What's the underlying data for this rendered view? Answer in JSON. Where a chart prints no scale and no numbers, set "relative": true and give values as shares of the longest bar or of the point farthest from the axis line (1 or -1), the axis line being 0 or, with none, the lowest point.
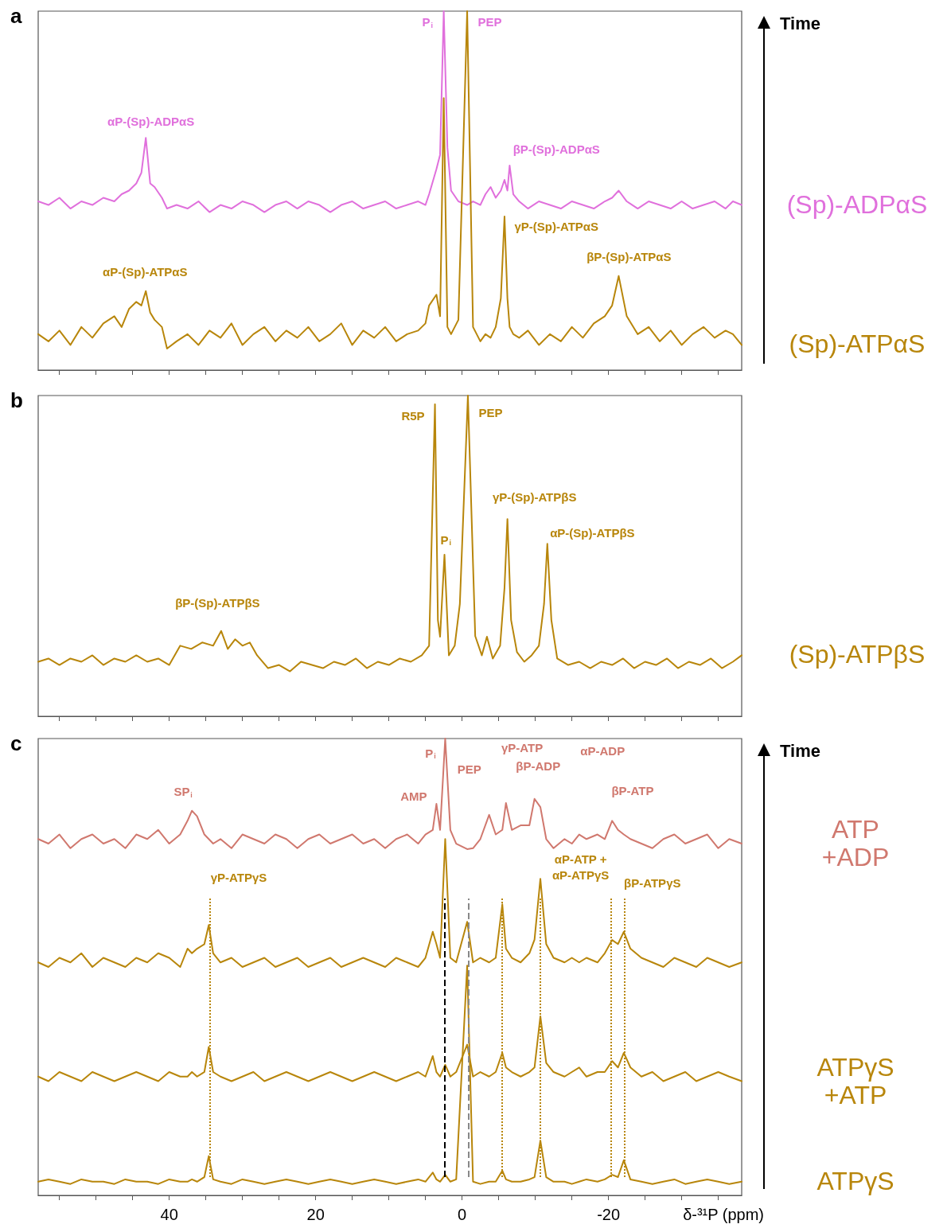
{
  "chart_data": [
    {
      "type": "line",
      "title": "a",
      "relative": true,
      "xlim": [
        57.9,
        -38.2
      ],
      "xticks": [
        {
          "value": 55,
          "label": null
        },
        {
          "value": 50,
          "label": null
        },
        {
          "value": 45,
          "label": null
        },
        40,
        {
          "value": 35,
          "label": null
        },
        {
          "value": 30,
          "label": null
        },
        {
          "value": 25,
          "label": null
        },
        20,
        {
          "value": 15,
          "label": null
        },
        {
          "value": 10,
          "label": null
        },
        {
          "value": 5,
          "label": null
        },
        0,
        {
          "value": -5,
          "label": null
        },
        {
          "value": -10,
          "label": null
        },
        {
          "value": -15,
          "label": null
        },
        -20,
        {
          "value": -25,
          "label": null
        },
        {
          "value": -30,
          "label": null
        },
        {
          "value": -35,
          "label": null
        }
      ],
      "tick_labels": false,
      "x": [
        57.9,
        56.5,
        55,
        53.5,
        52,
        50.5,
        49,
        47.5,
        46.5,
        45.5,
        44.5,
        43.8,
        43.2,
        42.6,
        42,
        41,
        40.3,
        39,
        37.5,
        36,
        34.5,
        33,
        31.5,
        30,
        28.5,
        27,
        25.5,
        24,
        22.5,
        21,
        19.5,
        18,
        16.5,
        15,
        13.5,
        12,
        10.5,
        9,
        7.5,
        6,
        5,
        4.5,
        3.5,
        3,
        2.5,
        2,
        1.5,
        0.5,
        -0.7,
        -1.5,
        -2.5,
        -3.2,
        -3.9,
        -4.6,
        -5.3,
        -5.8,
        -6.2,
        -6.5,
        -7,
        -7.8,
        -9,
        -10.5,
        -12,
        -13.5,
        -15,
        -16.5,
        -18,
        -19.5,
        -20.5,
        -21.4,
        -22.5,
        -24,
        -25.5,
        -27,
        -28.5,
        -30,
        -31.5,
        -33,
        -34.5,
        -36,
        -37,
        -38.2
      ],
      "series": [
        {
          "name": "(Sp)-ADPαS",
          "color": "#e070dc",
          "values": [
            0.47,
            0.46,
            0.48,
            0.45,
            0.47,
            0.46,
            0.48,
            0.47,
            0.49,
            0.5,
            0.52,
            0.55,
            0.647,
            0.52,
            0.51,
            0.48,
            0.45,
            0.46,
            0.45,
            0.47,
            0.44,
            0.46,
            0.45,
            0.47,
            0.46,
            0.44,
            0.46,
            0.47,
            0.45,
            0.47,
            0.46,
            0.44,
            0.46,
            0.47,
            0.45,
            0.46,
            0.47,
            0.45,
            0.46,
            0.47,
            0.46,
            0.49,
            0.56,
            0.6,
            1,
            0.62,
            0.5,
            0.47,
            0.46,
            0.47,
            0.46,
            0.49,
            0.51,
            0.48,
            0.5,
            0.53,
            0.5,
            0.57,
            0.49,
            0.47,
            0.45,
            0.47,
            0.46,
            0.45,
            0.47,
            0.46,
            0.45,
            0.47,
            0.48,
            0.5,
            0.47,
            0.45,
            0.47,
            0.46,
            0.45,
            0.47,
            0.45,
            0.46,
            0.47,
            0.45,
            0.47,
            0.46
          ]
        },
        {
          "name": "(Sp)-ATPαS",
          "color": "#b8860b",
          "values": [
            0.1,
            0.08,
            0.11,
            0.07,
            0.12,
            0.09,
            0.13,
            0.15,
            0.12,
            0.17,
            0.19,
            0.18,
            0.22,
            0.16,
            0.14,
            0.12,
            0.06,
            0.08,
            0.1,
            0.07,
            0.11,
            0.09,
            0.13,
            0.07,
            0.1,
            0.12,
            0.08,
            0.11,
            0.09,
            0.12,
            0.08,
            0.1,
            0.13,
            0.07,
            0.11,
            0.09,
            0.12,
            0.08,
            0.1,
            0.11,
            0.13,
            0.18,
            0.21,
            0.15,
            0.758,
            0.12,
            0.1,
            0.14,
            1,
            0.12,
            0.08,
            0.1,
            0.09,
            0.12,
            0.2,
            0.428,
            0.2,
            0.12,
            0.1,
            0.09,
            0.11,
            0.07,
            0.1,
            0.08,
            0.12,
            0.09,
            0.13,
            0.15,
            0.18,
            0.262,
            0.15,
            0.1,
            0.12,
            0.08,
            0.11,
            0.07,
            0.1,
            0.12,
            0.09,
            0.11,
            0.1,
            0.07
          ]
        }
      ],
      "annotations": [
        "Time",
        "P$_{i}$",
        "PEP",
        "αP-(Sp)-ADPαS",
        "βP-(Sp)-ADPαS",
        "γP-(Sp)-ATPαS",
        "βP-(Sp)-ATPαS",
        "αP-(Sp)-ATPαS"
      ]
    },
    {
      "type": "line",
      "title": "b",
      "relative": true,
      "xlim": [
        57.9,
        -38.2
      ],
      "xticks": [
        {
          "value": 55,
          "label": null
        },
        {
          "value": 50,
          "label": null
        },
        {
          "value": 45,
          "label": null
        },
        40,
        {
          "value": 35,
          "label": null
        },
        {
          "value": 30,
          "label": null
        },
        {
          "value": 25,
          "label": null
        },
        20,
        {
          "value": 15,
          "label": null
        },
        {
          "value": 10,
          "label": null
        },
        {
          "value": 5,
          "label": null
        },
        0,
        {
          "value": -5,
          "label": null
        },
        {
          "value": -10,
          "label": null
        },
        {
          "value": -15,
          "label": null
        },
        -20,
        {
          "value": -25,
          "label": null
        },
        {
          "value": -30,
          "label": null
        },
        {
          "value": -35,
          "label": null
        }
      ],
      "tick_labels": false,
      "x": [
        57.9,
        56.5,
        55,
        53.5,
        52,
        50.5,
        49,
        47.5,
        46,
        44.5,
        43,
        41.5,
        40,
        38.5,
        37,
        35.5,
        34,
        32.9,
        32,
        31,
        30,
        29,
        28,
        26.5,
        25,
        23.5,
        22,
        20.5,
        19,
        17.5,
        16,
        14.5,
        13,
        11.5,
        10,
        8.5,
        7,
        5.5,
        4.5,
        4.0,
        3.7,
        3.3,
        3.0,
        2.4,
        1.8,
        1.0,
        0.3,
        -0.8,
        -1.8,
        -2.7,
        -3.4,
        -4.2,
        -5.2,
        -5.8,
        -6.2,
        -6.7,
        -7.5,
        -8.5,
        -9.5,
        -10.5,
        -11.2,
        -11.65,
        -12.2,
        -13,
        -14.5,
        -16,
        -17.5,
        -19,
        -20.5,
        -22,
        -23.5,
        -25,
        -26.5,
        -28,
        -29.5,
        -31,
        -32.5,
        -34,
        -35.5,
        -37,
        -38.2
      ],
      "series": [
        {
          "name": "(Sp)-ATPβS",
          "color": "#b8860b",
          "values": [
            0.17,
            0.18,
            0.16,
            0.18,
            0.17,
            0.19,
            0.16,
            0.18,
            0.17,
            0.19,
            0.17,
            0.18,
            0.16,
            0.22,
            0.21,
            0.23,
            0.22,
            0.266,
            0.21,
            0.24,
            0.22,
            0.23,
            0.19,
            0.15,
            0.16,
            0.14,
            0.17,
            0.16,
            0.15,
            0.17,
            0.16,
            0.18,
            0.15,
            0.17,
            0.16,
            0.18,
            0.17,
            0.19,
            0.22,
            0.69,
            0.973,
            0.3,
            0.248,
            0.504,
            0.19,
            0.22,
            0.35,
            1,
            0.25,
            0.19,
            0.248,
            0.18,
            0.22,
            0.4,
            0.615,
            0.3,
            0.2,
            0.17,
            0.19,
            0.22,
            0.35,
            0.538,
            0.3,
            0.18,
            0.16,
            0.17,
            0.15,
            0.17,
            0.16,
            0.18,
            0.15,
            0.17,
            0.16,
            0.18,
            0.15,
            0.17,
            0.16,
            0.18,
            0.15,
            0.17,
            0.19
          ]
        }
      ],
      "annotations": [
        "R5P",
        "PEP",
        "P$_{i}$",
        "γP-(Sp)-ATPβS",
        "αP-(Sp)-ATPβS",
        "βP-(Sp)-ATPβS"
      ]
    },
    {
      "type": "line",
      "title": "c",
      "relative": true,
      "xlabel": "δ-³¹P (ppm)",
      "xlim": [
        57.9,
        -38.2
      ],
      "xticks": [
        {
          "value": 55,
          "label": null
        },
        {
          "value": 50,
          "label": null
        },
        {
          "value": 45,
          "label": null
        },
        40,
        {
          "value": 35,
          "label": null
        },
        {
          "value": 30,
          "label": null
        },
        {
          "value": 25,
          "label": null
        },
        20,
        {
          "value": 15,
          "label": null
        },
        {
          "value": 10,
          "label": null
        },
        {
          "value": 5,
          "label": null
        },
        0,
        {
          "value": -5,
          "label": null
        },
        {
          "value": -10,
          "label": null
        },
        {
          "value": -15,
          "label": null
        },
        -20,
        {
          "value": -25,
          "label": null
        },
        {
          "value": -30,
          "label": null
        },
        {
          "value": -35,
          "label": null
        }
      ],
      "tick_labels": "x",
      "x": [
        57.9,
        56.5,
        55,
        53.5,
        52,
        50.5,
        49,
        47.5,
        46,
        44.5,
        43,
        41.5,
        40,
        38.5,
        37.5,
        36.9,
        36.2,
        35.2,
        34.6,
        34,
        33,
        31.5,
        30,
        28.5,
        27,
        25.5,
        24,
        22.5,
        21,
        19.5,
        18,
        16.5,
        15,
        13.5,
        12,
        10.5,
        9,
        7.5,
        6,
        5,
        4.0,
        3.5,
        3.0,
        2.3,
        1.6,
        0.8,
        -0.7,
        -1.5,
        -2.5,
        -3.7,
        -4.6,
        -5.5,
        -6.0,
        -6.8,
        -8,
        -9.2,
        -9.9,
        -10.7,
        -11.5,
        -12.5,
        -14,
        -15,
        -16,
        -17,
        -18.5,
        -19.5,
        -20.5,
        -21.3,
        -22.1,
        -23,
        -24.5,
        -26,
        -27.5,
        -29,
        -30.5,
        -32,
        -33.5,
        -35,
        -36.5,
        -38.2
      ],
      "series": [
        {
          "name": "ATP +ADP",
          "color": "#d0786e",
          "values": [
            0.78,
            0.77,
            0.79,
            0.76,
            0.78,
            0.79,
            0.77,
            0.78,
            0.76,
            0.79,
            0.78,
            0.8,
            0.77,
            0.79,
            0.82,
            0.842,
            0.83,
            0.79,
            0.78,
            0.77,
            0.78,
            0.76,
            0.79,
            0.78,
            0.77,
            0.79,
            0.78,
            0.76,
            0.78,
            0.79,
            0.77,
            0.78,
            0.79,
            0.77,
            0.78,
            0.76,
            0.78,
            0.79,
            0.77,
            0.79,
            0.8,
            0.857,
            0.8,
            1,
            0.8,
            0.77,
            0.758,
            0.76,
            0.78,
            0.833,
            0.79,
            0.8,
            0.859,
            0.8,
            0.81,
            0.81,
            0.868,
            0.85,
            0.78,
            0.76,
            0.78,
            0.77,
            0.79,
            0.78,
            0.79,
            0.78,
            0.82,
            0.8,
            0.79,
            0.78,
            0.77,
            0.76,
            0.78,
            0.79,
            0.77,
            0.78,
            0.79,
            0.76,
            0.78,
            0.77
          ]
        },
        {
          "color": "#b8860b",
          "values": [
            0.51,
            0.5,
            0.52,
            0.51,
            0.53,
            0.5,
            0.52,
            0.51,
            0.5,
            0.52,
            0.51,
            0.53,
            0.52,
            0.5,
            0.54,
            0.53,
            0.54,
            0.55,
            0.592,
            0.53,
            0.51,
            0.52,
            0.5,
            0.51,
            0.52,
            0.5,
            0.51,
            0.52,
            0.5,
            0.51,
            0.52,
            0.5,
            0.51,
            0.52,
            0.51,
            0.5,
            0.52,
            0.51,
            0.5,
            0.52,
            0.577,
            0.55,
            0.52,
            0.78,
            0.52,
            0.51,
            0.599,
            0.51,
            0.52,
            0.51,
            0.52,
            0.637,
            0.54,
            0.52,
            0.51,
            0.53,
            0.56,
            0.693,
            0.55,
            0.52,
            0.51,
            0.52,
            0.51,
            0.52,
            0.51,
            0.53,
            0.559,
            0.55,
            0.577,
            0.54,
            0.52,
            0.51,
            0.5,
            0.52,
            0.51,
            0.5,
            0.52,
            0.51,
            0.5,
            0.51
          ]
        },
        {
          "name": "ATPγS +ATP",
          "color": "#b8860b",
          "values": [
            0.26,
            0.25,
            0.27,
            0.26,
            0.25,
            0.27,
            0.26,
            0.25,
            0.26,
            0.27,
            0.26,
            0.25,
            0.27,
            0.26,
            0.26,
            0.27,
            0.26,
            0.27,
            0.325,
            0.27,
            0.26,
            0.25,
            0.26,
            0.27,
            0.25,
            0.26,
            0.27,
            0.26,
            0.25,
            0.26,
            0.27,
            0.26,
            0.25,
            0.26,
            0.27,
            0.26,
            0.25,
            0.26,
            0.27,
            0.26,
            0.305,
            0.27,
            0.26,
            0.286,
            0.26,
            0.27,
            0.33,
            0.26,
            0.27,
            0.26,
            0.27,
            0.312,
            0.28,
            0.27,
            0.26,
            0.27,
            0.28,
            0.392,
            0.29,
            0.27,
            0.26,
            0.27,
            0.28,
            0.26,
            0.27,
            0.27,
            0.294,
            0.28,
            0.312,
            0.28,
            0.26,
            0.27,
            0.25,
            0.26,
            0.27,
            0.25,
            0.26,
            0.27,
            0.26,
            0.25
          ]
        },
        {
          "name": "ATPγS",
          "color": "#b8860b",
          "values": [
            0.03,
            0.035,
            0.03,
            0.025,
            0.035,
            0.03,
            0.03,
            0.025,
            0.035,
            0.03,
            0.03,
            0.025,
            0.035,
            0.03,
            0.03,
            0.035,
            0.03,
            0.04,
            0.086,
            0.035,
            0.03,
            0.025,
            0.035,
            0.03,
            0.025,
            0.03,
            0.035,
            0.03,
            0.025,
            0.03,
            0.035,
            0.03,
            0.025,
            0.03,
            0.035,
            0.03,
            0.025,
            0.03,
            0.035,
            0.03,
            0.05,
            0.035,
            0.03,
            0.045,
            0.03,
            0.035,
            0.503,
            0.03,
            0.025,
            0.03,
            0.03,
            0.054,
            0.035,
            0.03,
            0.03,
            0.035,
            0.04,
            0.12,
            0.04,
            0.03,
            0.03,
            0.025,
            0.03,
            0.035,
            0.03,
            0.035,
            0.045,
            0.04,
            0.077,
            0.035,
            0.03,
            0.025,
            0.03,
            0.035,
            0.025,
            0.03,
            0.035,
            0.03,
            0.025,
            0.03
          ]
        }
      ],
      "ref_lines": [
        {
          "axis": "x",
          "value": 34.5,
          "color": "#b8860b",
          "line_style": "dotted"
        },
        {
          "axis": "x",
          "value": 2.4,
          "color": "#000000",
          "line_style": "dashed"
        },
        {
          "axis": "x",
          "value": -0.9,
          "color": "#888888",
          "line_style": "dashed"
        },
        {
          "axis": "x",
          "value": -5.4,
          "color": "#b8860b",
          "line_style": "dotted"
        },
        {
          "axis": "x",
          "value": -10.7,
          "color": "#b8860b",
          "line_style": "dotted"
        },
        {
          "axis": "x",
          "value": -20.3,
          "color": "#b8860b",
          "line_style": "dotted"
        },
        {
          "axis": "x",
          "value": -22.2,
          "color": "#b8860b",
          "line_style": "dotted"
        }
      ],
      "annotations": [
        "Time",
        "SP$_{i}$",
        "γP-ATPγS",
        "AMP",
        "P$_{i}$",
        "PEP",
        "γP-ATP",
        "βP-ADP",
        "αP-ADP",
        "βP-ATP",
        "αP-ATP +\nαP-ATPγS",
        "βP-ATPγS"
      ]
    }
  ]
}
